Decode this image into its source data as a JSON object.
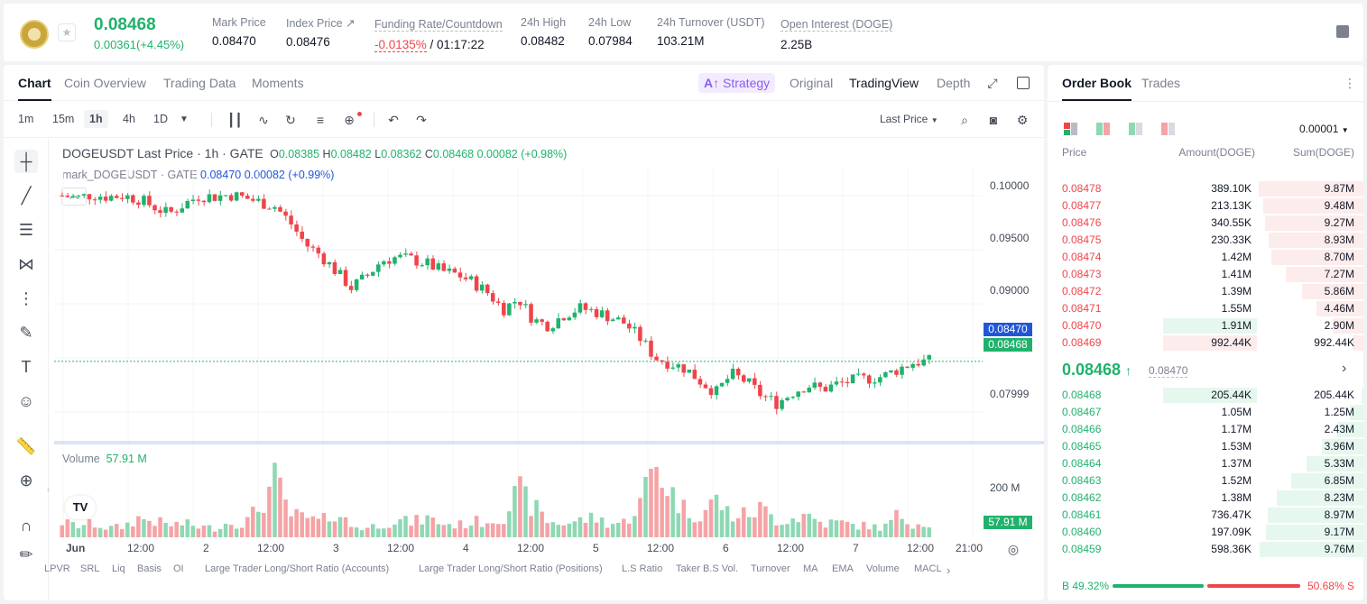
{
  "header": {
    "last_price": "0.08468",
    "change": "0.00361(+4.45%)",
    "stats": [
      {
        "label": "Mark Price",
        "value": "0.08470"
      },
      {
        "label": "Index Price ↗",
        "value": "0.08476"
      },
      {
        "label": "Funding Rate/Countdown",
        "value_neg": "-0.0135%",
        "value_rest": " / 01:17:22"
      },
      {
        "label": "24h High",
        "value": "0.08482"
      },
      {
        "label": "24h Low",
        "value": "0.07984"
      },
      {
        "label": "24h Turnover (USDT)",
        "value": "103.21M"
      },
      {
        "label": "Open Interest (DOGE)",
        "value": "2.25B"
      }
    ]
  },
  "tabs": [
    "Chart",
    "Coin Overview",
    "Trading Data",
    "Moments"
  ],
  "view_tabs": {
    "strategy": "Strategy",
    "original": "Original",
    "tradingview": "TradingView",
    "depth": "Depth"
  },
  "timeframes": [
    "1m",
    "15m",
    "1h",
    "4h",
    "1D"
  ],
  "last_price_select": "Last Price",
  "legend": {
    "symbol": "DOGEUSDT Last Price · 1h · GATE",
    "o": "0.08385",
    "h": "0.08482",
    "l": "0.08362",
    "c": "0.08468",
    "chg": "0.00082 (+0.98%)",
    "mark": "mark_DOGEUSDT · GATE",
    "mark_val": "0.08470 0.00082 (+0.99%)"
  },
  "volume_legend": {
    "label": "Volume",
    "value": "57.91 M"
  },
  "chart_data": {
    "type": "candlestick",
    "y_ticks": [
      "0.10000",
      "0.09500",
      "0.09000",
      "0.07999"
    ],
    "ylim": [
      0.0775,
      0.1025
    ],
    "vol_tick": "200 M",
    "mark_tag": "0.08470",
    "last_tag": "0.08468",
    "vol_tag": "57.91 M",
    "x_ticks": [
      "Jun",
      "12:00",
      "2",
      "12:00",
      "3",
      "12:00",
      "4",
      "12:00",
      "5",
      "12:00",
      "6",
      "12:00",
      "7",
      "12:00",
      "21:00"
    ],
    "close_path": [
      0.1,
      0.0998,
      0.1001,
      0.0999,
      0.1,
      0.0997,
      0.099,
      0.0983,
      0.0992,
      0.1,
      0.0999,
      0.1001,
      0.0998,
      0.0994,
      0.099,
      0.0975,
      0.0955,
      0.0945,
      0.093,
      0.0915,
      0.0925,
      0.094,
      0.0943,
      0.0941,
      0.0937,
      0.093,
      0.0927,
      0.092,
      0.091,
      0.0895,
      0.0905,
      0.0885,
      0.088,
      0.089,
      0.0896,
      0.0893,
      0.0888,
      0.0882,
      0.0868,
      0.085,
      0.0845,
      0.084,
      0.0828,
      0.0818,
      0.0835,
      0.0828,
      0.0815,
      0.0808,
      0.0818,
      0.0825,
      0.0821,
      0.0826,
      0.0829,
      0.0831,
      0.0833,
      0.084,
      0.0846,
      0.0847
    ],
    "volume_path": [
      20,
      15,
      18,
      12,
      14,
      25,
      22,
      16,
      18,
      14,
      12,
      20,
      18,
      40,
      75,
      30,
      25,
      20,
      35,
      15,
      12,
      18,
      22,
      20,
      25,
      18,
      16,
      20,
      22,
      28,
      60,
      40,
      20,
      18,
      22,
      26,
      18,
      20,
      45,
      100,
      60,
      35,
      30,
      50,
      28,
      30,
      38,
      22,
      25,
      30,
      18,
      20,
      16,
      15,
      12,
      30,
      18,
      20
    ]
  },
  "indicators": [
    "LPVR",
    "SRL",
    "Liq",
    "Basis",
    "OI",
    "Large Trader Long/Short Ratio (Accounts)",
    "Large Trader Long/Short Ratio (Positions)",
    "L.S Ratio",
    "Taker B.S Vol.",
    "Turnover",
    "MA",
    "EMA",
    "Volume",
    "MACL"
  ],
  "orderbook": {
    "tabs": [
      "Order Book",
      "Trades"
    ],
    "precision": "0.00001",
    "headers": {
      "price": "Price",
      "amount": "Amount(DOGE)",
      "sum": "Sum(DOGE)"
    },
    "asks": [
      {
        "price": "0.08478",
        "amount": "389.10K",
        "sum": "9.87M",
        "depth": 1.0,
        "amt": 0
      },
      {
        "price": "0.08477",
        "amount": "213.13K",
        "sum": "9.48M",
        "depth": 0.96,
        "amt": 0
      },
      {
        "price": "0.08476",
        "amount": "340.55K",
        "sum": "9.27M",
        "depth": 0.94,
        "amt": 0
      },
      {
        "price": "0.08475",
        "amount": "230.33K",
        "sum": "8.93M",
        "depth": 0.905,
        "amt": 0
      },
      {
        "price": "0.08474",
        "amount": "1.42M",
        "sum": "8.70M",
        "depth": 0.88,
        "amt": 0
      },
      {
        "price": "0.08473",
        "amount": "1.41M",
        "sum": "7.27M",
        "depth": 0.74,
        "amt": 0
      },
      {
        "price": "0.08472",
        "amount": "1.39M",
        "sum": "5.86M",
        "depth": 0.59,
        "amt": 0
      },
      {
        "price": "0.08471",
        "amount": "1.55M",
        "sum": "4.46M",
        "depth": 0.45,
        "amt": 0
      },
      {
        "price": "0.08470",
        "amount": "1.91M",
        "sum": "2.90M",
        "depth": 0.29,
        "amt": 1.0
      },
      {
        "price": "0.08469",
        "amount": "992.44K",
        "sum": "992.44K",
        "depth": 0.1,
        "amt": 1.0
      }
    ],
    "mid_price": "0.08468",
    "mid_mark": "0.08470",
    "bids": [
      {
        "price": "0.08468",
        "amount": "205.44K",
        "sum": "205.44K",
        "depth": 0.02,
        "amt": 1.0
      },
      {
        "price": "0.08467",
        "amount": "1.05M",
        "sum": "1.25M",
        "depth": 0.13,
        "amt": 0
      },
      {
        "price": "0.08466",
        "amount": "1.17M",
        "sum": "2.43M",
        "depth": 0.25,
        "amt": 0
      },
      {
        "price": "0.08465",
        "amount": "1.53M",
        "sum": "3.96M",
        "depth": 0.4,
        "amt": 0
      },
      {
        "price": "0.08464",
        "amount": "1.37M",
        "sum": "5.33M",
        "depth": 0.54,
        "amt": 0
      },
      {
        "price": "0.08463",
        "amount": "1.52M",
        "sum": "6.85M",
        "depth": 0.69,
        "amt": 0
      },
      {
        "price": "0.08462",
        "amount": "1.38M",
        "sum": "8.23M",
        "depth": 0.83,
        "amt": 0
      },
      {
        "price": "0.08461",
        "amount": "736.47K",
        "sum": "8.97M",
        "depth": 0.91,
        "amt": 0
      },
      {
        "price": "0.08460",
        "amount": "197.09K",
        "sum": "9.17M",
        "depth": 0.93,
        "amt": 0
      },
      {
        "price": "0.08459",
        "amount": "598.36K",
        "sum": "9.76M",
        "depth": 0.99,
        "amt": 0
      }
    ],
    "buy_ratio": "B 49.32%",
    "sell_ratio": "50.68% S",
    "buy_frac": 0.4932
  },
  "colors": {
    "up": "#20b26c",
    "down": "#ef454a",
    "accent": "#8b5cf6",
    "mark": "#2156d9"
  }
}
